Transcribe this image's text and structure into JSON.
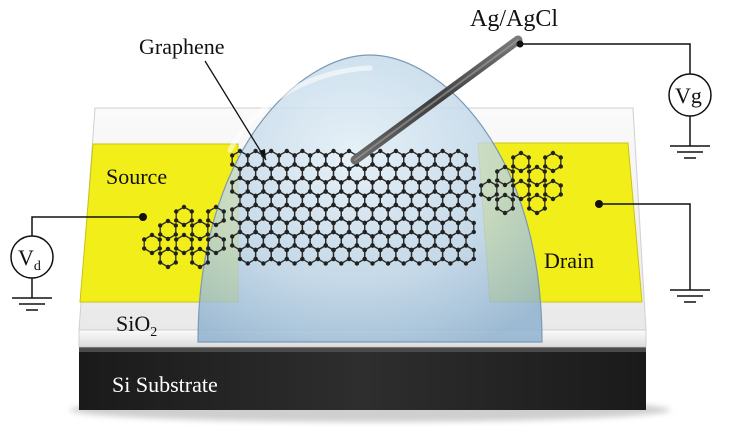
{
  "labels": {
    "graphene": "Graphene",
    "electrode": "Ag/AgCl",
    "source": "Source",
    "drain": "Drain",
    "oxide_main": "SiO",
    "oxide_sub": "2",
    "substrate": "Si Substrate",
    "vd_main": "V",
    "vd_sub": "d",
    "vg": "Vg"
  },
  "colors": {
    "electrode_metal": "#f2ee1a",
    "electrolyte_drop": "#b9d3e6",
    "oxide_layer": "#f4f4f4",
    "substrate": "#2a2a2a",
    "probe": "#4d4d4d",
    "graphene_bonds": "#2b2b2b"
  }
}
